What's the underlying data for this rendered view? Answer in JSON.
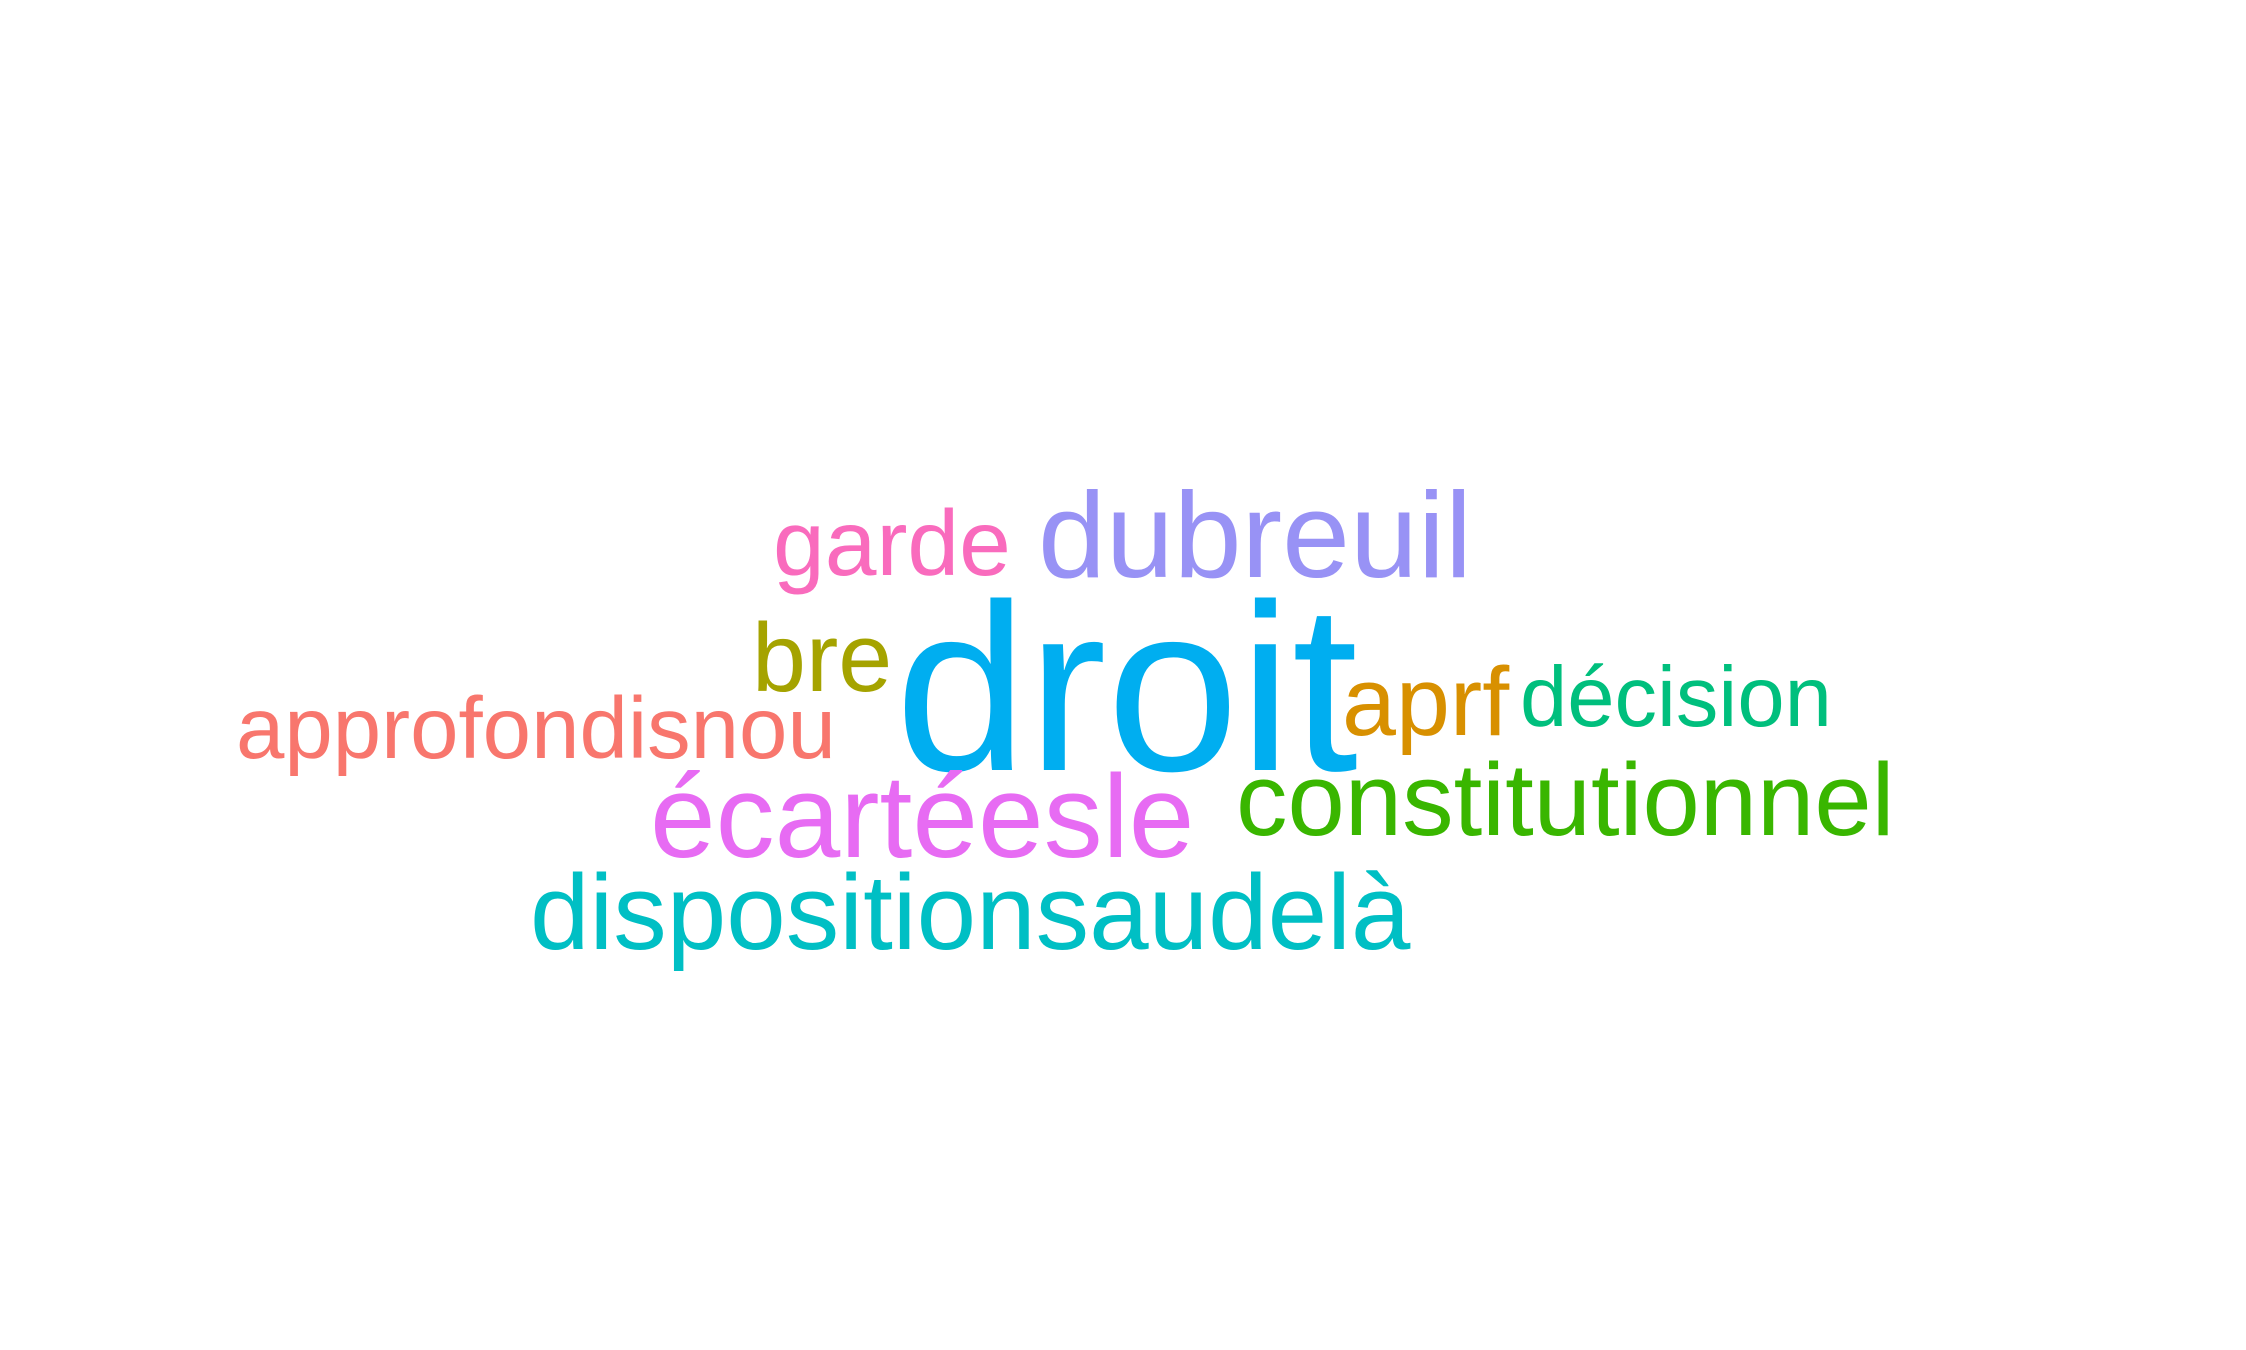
{
  "wordcloud": {
    "words": [
      {
        "text": "droit",
        "color": "#00aef0"
      },
      {
        "text": "dubreuil",
        "color": "#9892f5"
      },
      {
        "text": "garde",
        "color": "#f96bbd"
      },
      {
        "text": "bre",
        "color": "#a5a300"
      },
      {
        "text": "approfondisnou",
        "color": "#f8766d"
      },
      {
        "text": "aprf",
        "color": "#d89000"
      },
      {
        "text": "décision",
        "color": "#00bf7d"
      },
      {
        "text": "constitutionnel",
        "color": "#39b600"
      },
      {
        "text": "écartéesle",
        "color": "#e76bf3"
      },
      {
        "text": "dispositionsaudelà",
        "color": "#00bfc4"
      }
    ]
  }
}
